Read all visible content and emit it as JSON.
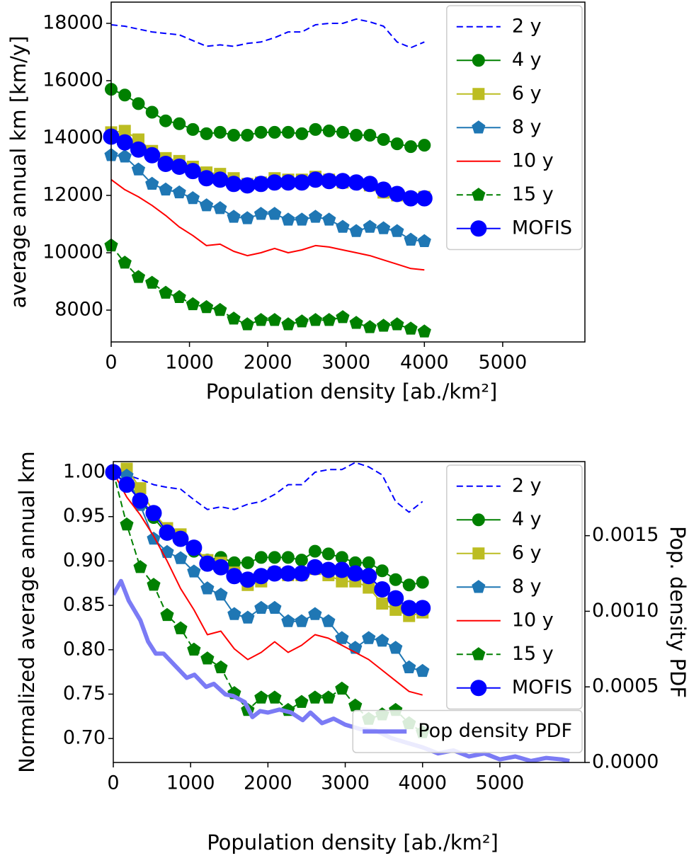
{
  "chart_data": [
    {
      "type": "line",
      "xlabel": "Population density [ab./km²]",
      "ylabel": "average annual km [km/y]",
      "xlim": [
        0,
        6050
      ],
      "ylim": [
        6890,
        18740
      ],
      "xticks": [
        0,
        1000,
        2000,
        3000,
        4000,
        5000
      ],
      "yticks": [
        8000,
        10000,
        12000,
        14000,
        16000,
        18000
      ],
      "legend": "upper right",
      "x": [
        0,
        174,
        348,
        522,
        696,
        870,
        1043,
        1217,
        1391,
        1565,
        1739,
        1913,
        2087,
        2261,
        2435,
        2609,
        2783,
        2957,
        3130,
        3304,
        3478,
        3652,
        3826,
        4000
      ],
      "series": [
        {
          "name": "2 y",
          "color": "#0000ff",
          "linestyle": "dashed",
          "values": [
            17950,
            17900,
            17800,
            17700,
            17650,
            17600,
            17400,
            17200,
            17250,
            17200,
            17300,
            17350,
            17500,
            17700,
            17700,
            17950,
            18000,
            18000,
            18150,
            18050,
            17900,
            17350,
            17150,
            17350
          ]
        },
        {
          "name": "4 y",
          "color": "#008000",
          "marker": "circle",
          "values": [
            15700,
            15500,
            15200,
            14900,
            14600,
            14500,
            14300,
            14150,
            14200,
            14100,
            14100,
            14200,
            14200,
            14200,
            14150,
            14300,
            14250,
            14200,
            14100,
            14100,
            13950,
            13800,
            13700,
            13750
          ]
        },
        {
          "name": "6 y",
          "color": "#bcbd22",
          "marker": "square",
          "values": [
            14200,
            14250,
            13950,
            13550,
            13300,
            13200,
            13000,
            12800,
            12750,
            12600,
            12400,
            12450,
            12600,
            12550,
            12550,
            12650,
            12550,
            12450,
            12450,
            12350,
            12100,
            12000,
            11900,
            11950
          ]
        },
        {
          "name": "8 y",
          "color": "#1f77b4",
          "marker": "pentagon",
          "values": [
            13400,
            13350,
            12900,
            12400,
            12200,
            12100,
            11900,
            11650,
            11550,
            11250,
            11200,
            11350,
            11350,
            11150,
            11150,
            11250,
            11150,
            10900,
            10750,
            10900,
            10850,
            10750,
            10450,
            10400
          ]
        },
        {
          "name": "10 y",
          "color": "#ff0000",
          "values": [
            12550,
            12200,
            11950,
            11650,
            11300,
            10900,
            10600,
            10250,
            10300,
            10050,
            9900,
            10000,
            10150,
            10000,
            10100,
            10250,
            10200,
            10100,
            10000,
            9900,
            9750,
            9600,
            9450,
            9400
          ]
        },
        {
          "name": "15 y",
          "color": "#008000",
          "marker": "pentagon",
          "linestyle": "dashed",
          "values": [
            10250,
            9650,
            9150,
            8950,
            8600,
            8450,
            8200,
            8100,
            8000,
            7700,
            7500,
            7650,
            7650,
            7500,
            7600,
            7650,
            7650,
            7750,
            7550,
            7400,
            7450,
            7500,
            7350,
            7250
          ]
        },
        {
          "name": "MOFIS",
          "color": "#0000ff",
          "marker": "big-circle",
          "values": [
            14050,
            13850,
            13600,
            13400,
            13100,
            13000,
            12850,
            12600,
            12550,
            12400,
            12350,
            12400,
            12450,
            12450,
            12450,
            12550,
            12500,
            12500,
            12450,
            12400,
            12200,
            12050,
            11900,
            11900
          ]
        }
      ]
    },
    {
      "type": "line",
      "xlabel": "Population density [ab./km²]",
      "ylabel": "Normalized average annual km",
      "y2label": "Pop. density PDF",
      "xlim": [
        0,
        6100
      ],
      "ylim": [
        0.673,
        1.012
      ],
      "y2lim": [
        0,
        0.00199
      ],
      "xticks": [
        0,
        1000,
        2000,
        3000,
        4000,
        5000
      ],
      "yticks": [
        {
          "value": 0.7,
          "label": "0.70"
        },
        0.75,
        {
          "value": 0.8,
          "label": "0.80"
        },
        0.85,
        {
          "value": 0.9,
          "label": "0.90"
        },
        0.95,
        {
          "value": 1,
          "label": "1.00"
        }
      ],
      "y2ticks": [
        {
          "value": 0,
          "label": "0.0000"
        },
        0.0005,
        {
          "value": 0.001,
          "label": "0.0010"
        },
        0.0015
      ],
      "legend": "upper right",
      "legend2": "lower right",
      "x": [
        0,
        174,
        348,
        522,
        696,
        870,
        1043,
        1217,
        1391,
        1565,
        1739,
        1913,
        2087,
        2261,
        2435,
        2609,
        2783,
        2957,
        3130,
        3304,
        3478,
        3652,
        3826,
        4000
      ],
      "series": [
        {
          "name": "2 y",
          "color": "#0000ff",
          "linestyle": "dashed",
          "values": [
            1.0,
            0.997,
            0.992,
            0.986,
            0.983,
            0.981,
            0.969,
            0.958,
            0.961,
            0.958,
            0.964,
            0.967,
            0.975,
            0.986,
            0.986,
            1.0,
            1.003,
            1.003,
            1.011,
            1.006,
            0.997,
            0.967,
            0.955,
            0.967
          ]
        },
        {
          "name": "4 y",
          "color": "#008000",
          "marker": "circle",
          "values": [
            1.0,
            0.987,
            0.968,
            0.949,
            0.93,
            0.924,
            0.911,
            0.901,
            0.904,
            0.898,
            0.898,
            0.904,
            0.904,
            0.904,
            0.901,
            0.911,
            0.908,
            0.904,
            0.898,
            0.898,
            0.889,
            0.879,
            0.873,
            0.876
          ]
        },
        {
          "name": "6 y",
          "color": "#bcbd22",
          "marker": "square",
          "values": [
            1.0,
            1.004,
            0.982,
            0.954,
            0.937,
            0.93,
            0.915,
            0.901,
            0.898,
            0.887,
            0.873,
            0.877,
            0.887,
            0.884,
            0.884,
            0.891,
            0.884,
            0.877,
            0.877,
            0.87,
            0.852,
            0.845,
            0.838,
            0.842
          ]
        },
        {
          "name": "8 y",
          "color": "#1f77b4",
          "marker": "pentagon",
          "values": [
            1.0,
            0.996,
            0.963,
            0.925,
            0.91,
            0.903,
            0.888,
            0.869,
            0.862,
            0.84,
            0.836,
            0.847,
            0.847,
            0.832,
            0.832,
            0.84,
            0.832,
            0.813,
            0.802,
            0.813,
            0.81,
            0.802,
            0.78,
            0.776
          ]
        },
        {
          "name": "10 y",
          "color": "#ff0000",
          "values": [
            1.0,
            0.972,
            0.952,
            0.928,
            0.9,
            0.869,
            0.845,
            0.817,
            0.821,
            0.801,
            0.789,
            0.797,
            0.809,
            0.797,
            0.805,
            0.817,
            0.813,
            0.805,
            0.797,
            0.789,
            0.777,
            0.765,
            0.753,
            0.749
          ]
        },
        {
          "name": "15 y",
          "color": "#008000",
          "marker": "pentagon",
          "linestyle": "dashed",
          "values": [
            1.0,
            0.941,
            0.893,
            0.873,
            0.839,
            0.824,
            0.8,
            0.79,
            0.78,
            0.751,
            0.732,
            0.746,
            0.746,
            0.732,
            0.741,
            0.746,
            0.746,
            0.756,
            0.737,
            0.722,
            0.727,
            0.732,
            0.717,
            0.707
          ]
        },
        {
          "name": "MOFIS",
          "color": "#0000ff",
          "marker": "big-circle",
          "values": [
            1.0,
            0.986,
            0.968,
            0.954,
            0.932,
            0.925,
            0.915,
            0.897,
            0.893,
            0.883,
            0.879,
            0.883,
            0.886,
            0.886,
            0.886,
            0.893,
            0.89,
            0.89,
            0.886,
            0.883,
            0.868,
            0.858,
            0.847,
            0.847
          ]
        },
        {
          "name": "Pop density PDF",
          "color": "#7b7bf5",
          "axis": "y2",
          "linewidth": 6,
          "x": [
            0,
            100,
            200,
            350,
            450,
            550,
            650,
            800,
            950,
            1050,
            1200,
            1300,
            1450,
            1550,
            1700,
            1800,
            1900,
            2000,
            2150,
            2300,
            2450,
            2550,
            2700,
            2850,
            3000,
            3200,
            3400,
            3600,
            3800,
            4000,
            4200,
            4400,
            4600,
            4800,
            5000,
            5200,
            5400,
            5600,
            5800,
            5900
          ],
          "values": [
            0.00111,
            0.0012,
            0.00107,
            0.00094,
            0.0008,
            0.00072,
            0.00072,
            0.00064,
            0.00056,
            0.00058,
            0.0005,
            0.00052,
            0.00045,
            0.00044,
            0.0004,
            0.0003,
            0.00034,
            0.00033,
            0.00035,
            0.00033,
            0.00028,
            0.00033,
            0.00026,
            0.00029,
            0.00025,
            0.00022,
            0.00021,
            0.00016,
            0.00013,
            0.0001,
            6e-05,
            8e-05,
            4e-05,
            6e-05,
            2e-05,
            4e-05,
            1e-05,
            3e-05,
            2e-05,
            1e-05
          ]
        }
      ]
    }
  ]
}
